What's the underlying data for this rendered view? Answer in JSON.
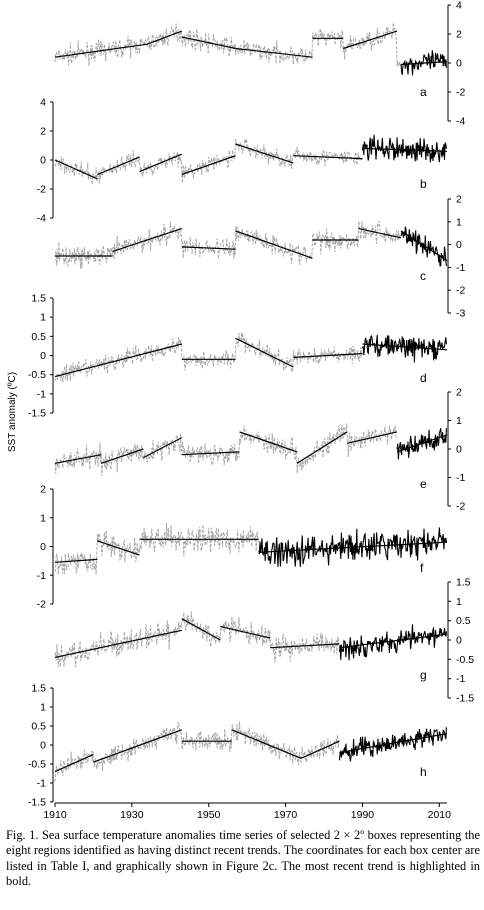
{
  "figure": {
    "caption": "Fig. 1. Sea surface temperature anomalies time series of selected 2 × 2º boxes representing the eight regions identified as having distinct recent trends. The coordinates for each box center are listed in Table I, and graphically shown in Figure 2c. The most recent trend is highlighted in bold.",
    "ylabel": "SST anomaly (ºC)"
  },
  "chart_data": {
    "type": "line",
    "xlabel": "",
    "x_ticks": [
      1910,
      1930,
      1950,
      1970,
      1990,
      2010
    ],
    "x_range": [
      1910,
      2012
    ],
    "colors": {
      "history": "#a6a6a6",
      "recent": "#000000",
      "trend": "#000000"
    },
    "panels": [
      {
        "label": "a",
        "axis_side": "right",
        "ylim": [
          -4,
          4
        ],
        "ticks": [
          -4,
          -2,
          0,
          2,
          4
        ],
        "noise": 0.75,
        "recent_noise": 0.9,
        "recent_start": 2000,
        "segments": [
          {
            "x0": 1910,
            "x1": 1934,
            "y0": 0.4,
            "y1": 1.3
          },
          {
            "x0": 1934,
            "x1": 1943,
            "y0": 1.3,
            "y1": 2.2
          },
          {
            "x0": 1943,
            "x1": 1957,
            "y0": 1.8,
            "y1": 1.0
          },
          {
            "x0": 1957,
            "x1": 1977,
            "y0": 1.0,
            "y1": 0.4
          },
          {
            "x0": 1977,
            "x1": 1985,
            "y0": 1.7,
            "y1": 1.7
          },
          {
            "x0": 1985,
            "x1": 1999,
            "y0": 1.0,
            "y1": 2.2
          },
          {
            "x0": 2000,
            "x1": 2012,
            "y0": -0.1,
            "y1": 0.1
          }
        ]
      },
      {
        "label": "b",
        "axis_side": "left",
        "ylim": [
          -4,
          4
        ],
        "ticks": [
          -4,
          -2,
          0,
          2,
          4
        ],
        "noise": 0.7,
        "recent_noise": 1.0,
        "recent_start": 1990,
        "segments": [
          {
            "x0": 1910,
            "x1": 1921,
            "y0": 0.0,
            "y1": -1.3
          },
          {
            "x0": 1921,
            "x1": 1932,
            "y0": -1.0,
            "y1": 0.2
          },
          {
            "x0": 1932,
            "x1": 1943,
            "y0": -0.8,
            "y1": 0.4
          },
          {
            "x0": 1943,
            "x1": 1957,
            "y0": -1.0,
            "y1": 0.3
          },
          {
            "x0": 1957,
            "x1": 1972,
            "y0": 1.1,
            "y1": -0.2
          },
          {
            "x0": 1972,
            "x1": 1990,
            "y0": 0.3,
            "y1": 0.1
          },
          {
            "x0": 1990,
            "x1": 2012,
            "y0": 0.8,
            "y1": 0.6
          }
        ]
      },
      {
        "label": "c",
        "axis_side": "right",
        "ylim": [
          -3,
          2
        ],
        "ticks": [
          -3,
          -2,
          -1,
          0,
          1,
          2
        ],
        "noise": 0.55,
        "recent_noise": 0.6,
        "recent_start": 2000,
        "segments": [
          {
            "x0": 1910,
            "x1": 1925,
            "y0": -0.5,
            "y1": -0.5
          },
          {
            "x0": 1925,
            "x1": 1943,
            "y0": -0.3,
            "y1": 0.7
          },
          {
            "x0": 1943,
            "x1": 1957,
            "y0": -0.1,
            "y1": -0.2
          },
          {
            "x0": 1957,
            "x1": 1977,
            "y0": 0.6,
            "y1": -0.6
          },
          {
            "x0": 1977,
            "x1": 1989,
            "y0": 0.2,
            "y1": 0.2
          },
          {
            "x0": 1989,
            "x1": 2000,
            "y0": 0.7,
            "y1": 0.3
          },
          {
            "x0": 2000,
            "x1": 2012,
            "y0": 0.6,
            "y1": -0.7
          }
        ]
      },
      {
        "label": "d",
        "axis_side": "left",
        "ylim": [
          -1.5,
          1.5
        ],
        "ticks": [
          -1.5,
          -1,
          -0.5,
          0,
          0.5,
          1,
          1.5
        ],
        "noise": 0.28,
        "recent_noise": 0.35,
        "recent_start": 1990,
        "segments": [
          {
            "x0": 1910,
            "x1": 1943,
            "y0": -0.55,
            "y1": 0.3
          },
          {
            "x0": 1943,
            "x1": 1957,
            "y0": -0.1,
            "y1": -0.1
          },
          {
            "x0": 1957,
            "x1": 1972,
            "y0": 0.45,
            "y1": -0.3
          },
          {
            "x0": 1972,
            "x1": 1990,
            "y0": -0.05,
            "y1": 0.05
          },
          {
            "x0": 1990,
            "x1": 2012,
            "y0": 0.3,
            "y1": 0.15
          }
        ]
      },
      {
        "label": "e",
        "axis_side": "right",
        "ylim": [
          -2,
          2
        ],
        "ticks": [
          -2,
          -1,
          0,
          1,
          2
        ],
        "noise": 0.45,
        "recent_noise": 0.5,
        "recent_start": 1999,
        "segments": [
          {
            "x0": 1910,
            "x1": 1922,
            "y0": -0.5,
            "y1": -0.2
          },
          {
            "x0": 1922,
            "x1": 1933,
            "y0": -0.5,
            "y1": 0.0
          },
          {
            "x0": 1933,
            "x1": 1943,
            "y0": -0.3,
            "y1": 0.4
          },
          {
            "x0": 1943,
            "x1": 1958,
            "y0": -0.2,
            "y1": -0.1
          },
          {
            "x0": 1958,
            "x1": 1973,
            "y0": 0.6,
            "y1": -0.1
          },
          {
            "x0": 1973,
            "x1": 1986,
            "y0": -0.5,
            "y1": 0.6
          },
          {
            "x0": 1986,
            "x1": 1999,
            "y0": 0.2,
            "y1": 0.6
          },
          {
            "x0": 1999,
            "x1": 2012,
            "y0": -0.1,
            "y1": 0.5
          }
        ]
      },
      {
        "label": "f",
        "axis_side": "left",
        "ylim": [
          -2,
          2
        ],
        "ticks": [
          -2,
          -1,
          0,
          1,
          2
        ],
        "noise": 0.55,
        "recent_noise": 0.6,
        "recent_start": 1963,
        "segments": [
          {
            "x0": 1910,
            "x1": 1921,
            "y0": -0.55,
            "y1": -0.45
          },
          {
            "x0": 1921,
            "x1": 1932,
            "y0": 0.2,
            "y1": -0.3
          },
          {
            "x0": 1932,
            "x1": 1963,
            "y0": 0.25,
            "y1": 0.25
          },
          {
            "x0": 1963,
            "x1": 2012,
            "y0": -0.2,
            "y1": 0.15
          }
        ]
      },
      {
        "label": "g",
        "axis_side": "right",
        "ylim": [
          -1.5,
          1.5
        ],
        "ticks": [
          -1.5,
          -1,
          -0.5,
          0,
          0.5,
          1,
          1.5
        ],
        "noise": 0.35,
        "recent_noise": 0.35,
        "recent_start": 1984,
        "segments": [
          {
            "x0": 1910,
            "x1": 1943,
            "y0": -0.45,
            "y1": 0.25
          },
          {
            "x0": 1943,
            "x1": 1953,
            "y0": 0.55,
            "y1": 0.0
          },
          {
            "x0": 1953,
            "x1": 1966,
            "y0": 0.35,
            "y1": 0.05
          },
          {
            "x0": 1966,
            "x1": 1984,
            "y0": -0.2,
            "y1": -0.1
          },
          {
            "x0": 1984,
            "x1": 2012,
            "y0": -0.2,
            "y1": 0.15
          }
        ]
      },
      {
        "label": "h",
        "axis_side": "left",
        "ylim": [
          -1.5,
          1.5
        ],
        "ticks": [
          -1.5,
          -1,
          -0.5,
          0,
          0.5,
          1,
          1.5
        ],
        "noise": 0.3,
        "recent_noise": 0.3,
        "recent_start": 1984,
        "segments": [
          {
            "x0": 1910,
            "x1": 1920,
            "y0": -0.7,
            "y1": -0.25
          },
          {
            "x0": 1920,
            "x1": 1943,
            "y0": -0.45,
            "y1": 0.4
          },
          {
            "x0": 1943,
            "x1": 1956,
            "y0": 0.1,
            "y1": 0.1
          },
          {
            "x0": 1956,
            "x1": 1974,
            "y0": 0.4,
            "y1": -0.35
          },
          {
            "x0": 1974,
            "x1": 1984,
            "y0": -0.35,
            "y1": 0.1
          },
          {
            "x0": 1984,
            "x1": 2012,
            "y0": -0.2,
            "y1": 0.3
          }
        ]
      }
    ]
  }
}
